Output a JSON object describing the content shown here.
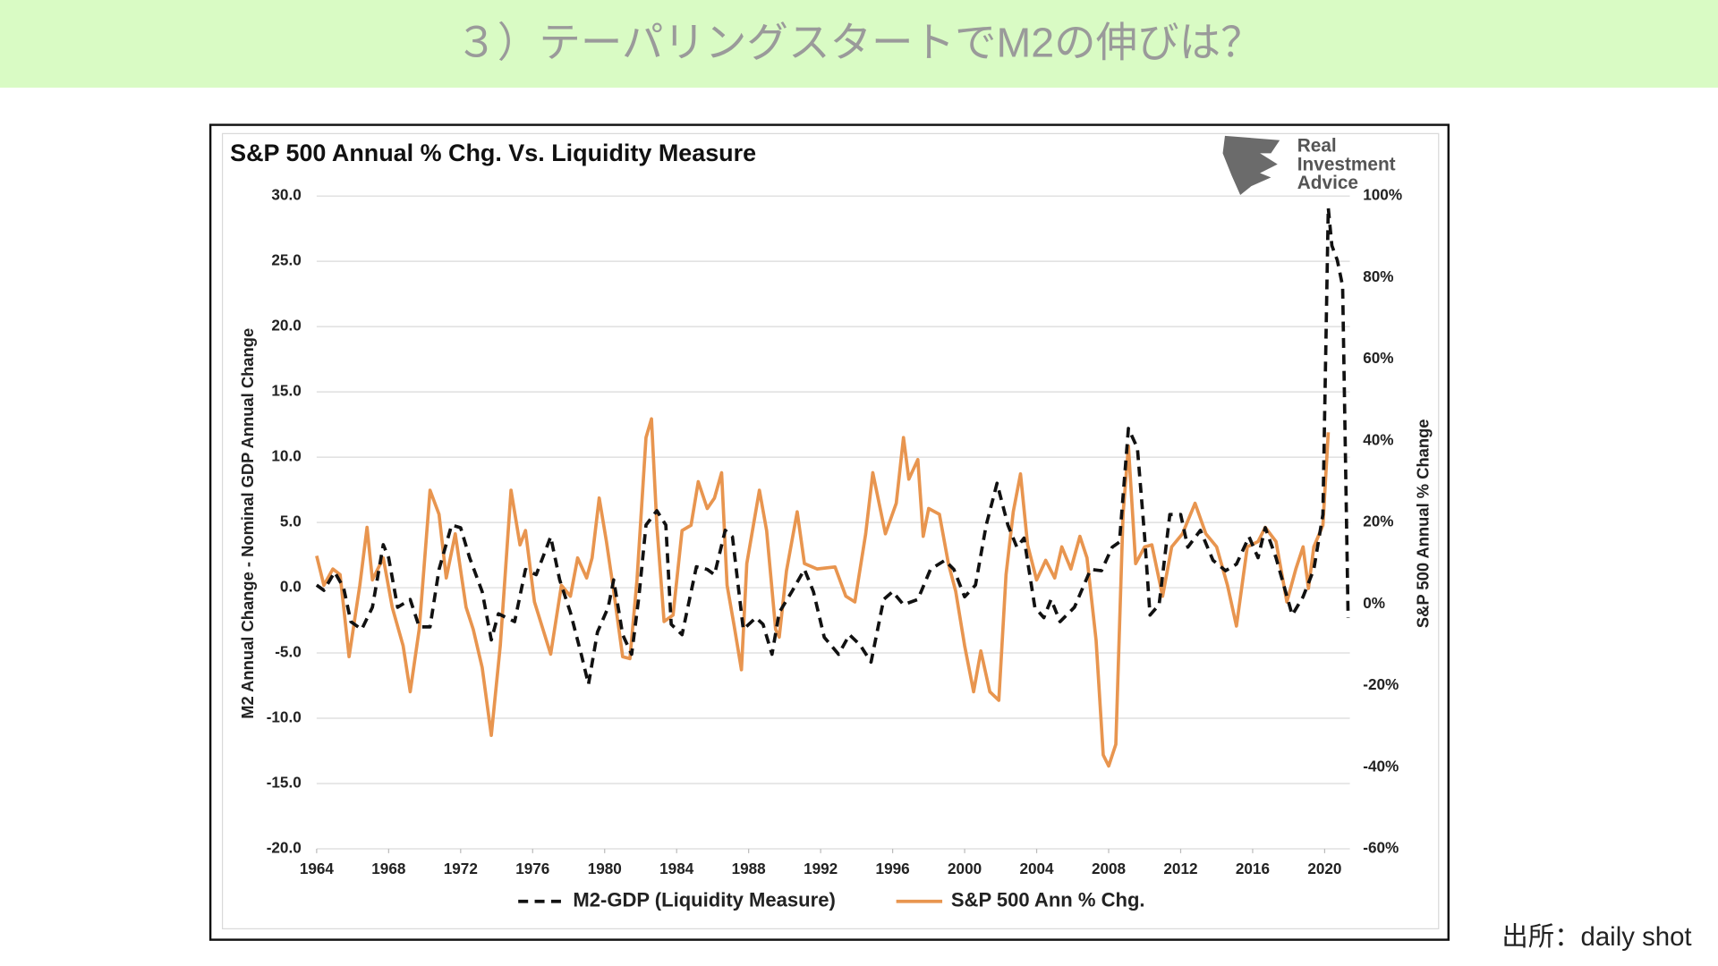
{
  "header": {
    "title": "３）テーパリングスタートでM2の伸びは？"
  },
  "source": "出所：daily shot",
  "logo": [
    "Real",
    "Investment",
    "Advice"
  ],
  "chart_data": {
    "type": "line",
    "title": "S&P 500 Annual % Chg. Vs. Liquidity Measure",
    "ylabel": "M2 Annual Change - Nominal GDP Annual Change",
    "y2label": "S&P 500 Annual % Change",
    "xlim": [
      1964,
      2021.4
    ],
    "xticks": [
      1964,
      1968,
      1972,
      1976,
      1980,
      1984,
      1988,
      1992,
      1996,
      2000,
      2004,
      2008,
      2012,
      2016,
      2020
    ],
    "ylim": [
      -20,
      30
    ],
    "yticks": [
      {
        "value": 30,
        "label": "30.0"
      },
      {
        "value": 25,
        "label": "25.0"
      },
      {
        "value": 20,
        "label": "20.0"
      },
      {
        "value": 15,
        "label": "15.0"
      },
      {
        "value": 10,
        "label": "10.0"
      },
      {
        "value": 5,
        "label": "5.0"
      },
      {
        "value": 0,
        "label": "0.0"
      },
      {
        "value": -5,
        "label": "-5.0"
      },
      {
        "value": -10,
        "label": "-10.0"
      },
      {
        "value": -15,
        "label": "-15.0"
      },
      {
        "value": -20,
        "label": "-20.0"
      }
    ],
    "y2lim": [
      -60,
      100
    ],
    "y2ticks": [
      {
        "value": 100,
        "label": "100%"
      },
      {
        "value": 80,
        "label": "80%"
      },
      {
        "value": 60,
        "label": "60%"
      },
      {
        "value": 40,
        "label": "40%"
      },
      {
        "value": 20,
        "label": "20%"
      },
      {
        "value": 0,
        "label": "0%"
      },
      {
        "value": -20,
        "label": "-20%"
      },
      {
        "value": -40,
        "label": "-40%"
      },
      {
        "value": -60,
        "label": "-60%"
      }
    ],
    "grid": true,
    "legend": "bottom",
    "series": [
      {
        "name": "M2-GDP (Liquidity Measure)",
        "color": "#111111",
        "dashed": true,
        "x": [
          1964.0,
          1964.4,
          1965.0,
          1965.5,
          1965.9,
          1966.5,
          1967.1,
          1967.7,
          1968.0,
          1968.5,
          1969.2,
          1969.7,
          1970.3,
          1970.8,
          1971.5,
          1972.0,
          1972.5,
          1973.2,
          1973.7,
          1974.1,
          1975.0,
          1975.6,
          1976.2,
          1977.0,
          1977.5,
          1978.1,
          1978.7,
          1979.1,
          1979.6,
          1980.2,
          1980.5,
          1981.0,
          1981.5,
          1981.9,
          1982.3,
          1982.9,
          1983.4,
          1983.7,
          1984.3,
          1985.1,
          1985.7,
          1986.1,
          1986.7,
          1987.1,
          1987.7,
          1988.4,
          1988.8,
          1989.3,
          1989.7,
          1990.4,
          1991.1,
          1991.6,
          1992.2,
          1993.0,
          1993.6,
          1994.2,
          1994.8,
          1995.5,
          1996.0,
          1996.6,
          1997.4,
          1998.1,
          1998.9,
          1999.4,
          2000.0,
          2000.6,
          2001.2,
          2001.8,
          2002.4,
          2002.9,
          2003.3,
          2003.9,
          2004.4,
          2004.8,
          2005.3,
          2006.1,
          2007.0,
          2007.6,
          2008.2,
          2008.6,
          2009.1,
          2009.6,
          2010.0,
          2010.3,
          2010.8,
          2011.4,
          2012.0,
          2012.4,
          2013.1,
          2013.8,
          2014.5,
          2015.1,
          2015.8,
          2016.3,
          2016.7,
          2017.3,
          2018.2,
          2018.8,
          2019.4,
          2019.9,
          2020.2,
          2020.4,
          2020.7,
          2021.0,
          2021.3
        ],
        "values": [
          0.2,
          -0.2,
          1.2,
          0,
          -2.6,
          -3.2,
          -1.5,
          3.3,
          2.3,
          -1.5,
          -0.9,
          -3,
          -3,
          1.4,
          4.8,
          4.6,
          2.3,
          -0.3,
          -4,
          -2,
          -2.6,
          1.4,
          1,
          3.9,
          0.6,
          -1.9,
          -5.1,
          -7.4,
          -3.4,
          -1.5,
          0.6,
          -3.6,
          -5.1,
          -0.7,
          4.8,
          5.9,
          4.8,
          -2.8,
          -3.6,
          1.6,
          1.4,
          1,
          4.4,
          3.9,
          -3.2,
          -2.3,
          -2.8,
          -5.1,
          -1.9,
          -0.3,
          1.4,
          -0.3,
          -3.8,
          -5.1,
          -3.6,
          -4.4,
          -5.7,
          -0.9,
          -0.3,
          -1.3,
          -0.9,
          1.4,
          2.1,
          1.4,
          -0.7,
          0.2,
          4.8,
          8,
          4.8,
          3.1,
          3.8,
          -1.5,
          -2.3,
          -0.9,
          -2.6,
          -1.5,
          1.4,
          1.3,
          3.1,
          3.5,
          12.2,
          10.7,
          3.9,
          -2.1,
          -1.3,
          5.6,
          5.6,
          3.1,
          4.4,
          2.1,
          1.3,
          1.8,
          3.9,
          2.3,
          4.6,
          2.3,
          -2.1,
          -0.7,
          1.4,
          5.6,
          29.1,
          26.2,
          25.1,
          23.1,
          -2.3
        ]
      },
      {
        "name": "S&P 500 Ann % Chg.",
        "color": "#e8954f",
        "axis": "y2",
        "x": [
          1964.0,
          1964.4,
          1964.9,
          1965.3,
          1965.8,
          1966.4,
          1966.8,
          1967.1,
          1967.7,
          1968.2,
          1968.8,
          1969.2,
          1969.7,
          1970.3,
          1970.8,
          1971.2,
          1971.7,
          1972.3,
          1972.7,
          1973.2,
          1973.7,
          1974.2,
          1974.8,
          1975.3,
          1975.6,
          1976.1,
          1977.0,
          1977.6,
          1978.1,
          1978.5,
          1979.0,
          1979.3,
          1979.7,
          1980.1,
          1980.5,
          1981.0,
          1981.4,
          1981.8,
          1982.3,
          1982.6,
          1982.9,
          1983.3,
          1983.8,
          1984.3,
          1984.8,
          1985.2,
          1985.7,
          1986.1,
          1986.5,
          1986.8,
          1987.2,
          1987.6,
          1987.9,
          1988.6,
          1989.0,
          1989.5,
          1989.7,
          1990.1,
          1990.7,
          1991.1,
          1991.8,
          1992.8,
          1993.4,
          1993.9,
          1994.5,
          1994.9,
          1995.6,
          1996.2,
          1996.6,
          1996.9,
          1997.4,
          1997.7,
          1998.0,
          1998.6,
          1999.1,
          1999.5,
          2000.0,
          2000.5,
          2000.9,
          2001.4,
          2001.9,
          2002.3,
          2002.7,
          2003.1,
          2003.5,
          2004.0,
          2004.5,
          2005.0,
          2005.4,
          2005.9,
          2006.4,
          2006.8,
          2007.3,
          2007.7,
          2008.0,
          2008.4,
          2008.8,
          2009.1,
          2009.5,
          2010.0,
          2010.4,
          2011.0,
          2011.5,
          2012.1,
          2012.8,
          2013.4,
          2014.0,
          2014.6,
          2015.1,
          2015.7,
          2016.3,
          2016.7,
          2017.3,
          2017.9,
          2018.4,
          2018.8,
          2019.1,
          2019.4,
          2019.9,
          2020.2
        ],
        "values": [
          11.8,
          4.6,
          8.6,
          7.2,
          -12.9,
          4.6,
          18.8,
          5.9,
          11.3,
          -0.8,
          -10.2,
          -21.5,
          -6.2,
          27.9,
          22,
          6.4,
          17.2,
          -0.8,
          -6.2,
          -15.6,
          -32.2,
          -10.2,
          27.9,
          14.5,
          18,
          0.5,
          -12.3,
          4.6,
          1.9,
          11.3,
          6.4,
          11.3,
          26,
          15.3,
          3.2,
          -12.9,
          -13.4,
          6,
          40.8,
          45.4,
          19.3,
          -4.3,
          -2.7,
          18,
          19.3,
          30,
          23.4,
          26,
          32.2,
          4.6,
          -5.4,
          -16.1,
          9.9,
          27.9,
          18,
          -6.2,
          -8.1,
          8.1,
          22.6,
          9.9,
          8.6,
          9.1,
          1.9,
          0.5,
          17.2,
          32.2,
          17.2,
          24.7,
          40.8,
          30.6,
          35.4,
          16.6,
          23.4,
          22,
          9.9,
          3.2,
          -10.2,
          -21.5,
          -11.5,
          -21.5,
          -23.6,
          7.2,
          22.6,
          31.9,
          14.5,
          5.9,
          10.7,
          6.4,
          14,
          8.6,
          16.6,
          11.3,
          -8.9,
          -37,
          -39.7,
          -34.4,
          22,
          38.7,
          9.9,
          14,
          14.5,
          1.9,
          14,
          17.2,
          24.7,
          17.2,
          14,
          4.6,
          -5.4,
          14,
          15.3,
          18.8,
          15.3,
          0.5,
          8.6,
          14,
          3.8,
          14,
          19.3,
          42.1
        ]
      }
    ]
  }
}
